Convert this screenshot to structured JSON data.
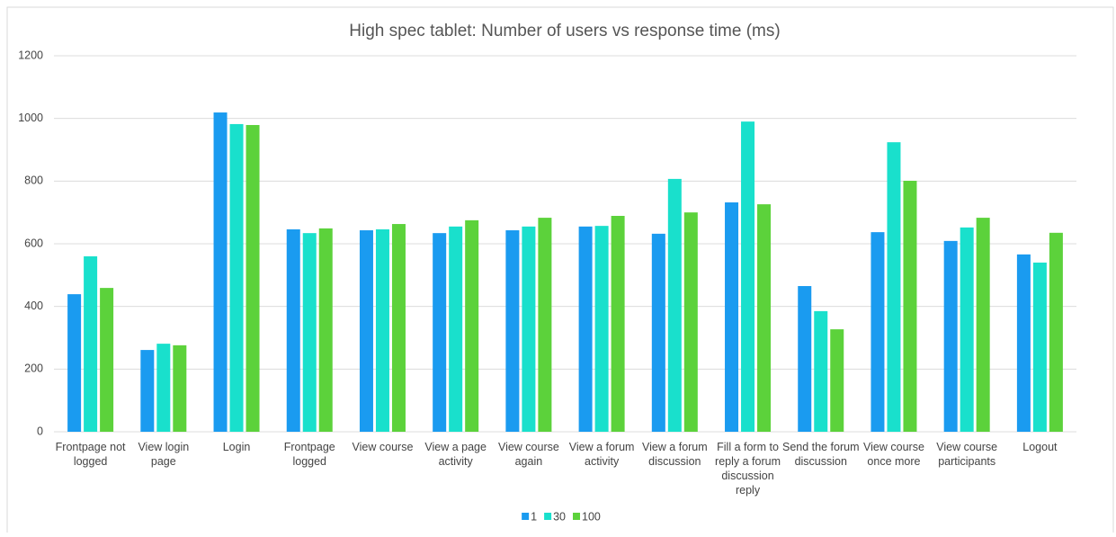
{
  "chart_data": {
    "type": "bar",
    "title": "High spec tablet: Number of users vs response time (ms)",
    "categories": [
      "Frontpage not logged",
      "View login page",
      "Login",
      "Frontpage logged",
      "View course",
      "View a page activity",
      "View course again",
      "View a forum activity",
      "View a forum discussion",
      "Fill a form to reply a forum discussion reply",
      "Send the forum discussion",
      "View course once more",
      "View course participants",
      "Logout"
    ],
    "series": [
      {
        "name": "1",
        "color": "#1a9bf0",
        "values": [
          439,
          261,
          1019,
          646,
          643,
          634,
          643,
          655,
          632,
          732,
          465,
          637,
          609,
          566
        ]
      },
      {
        "name": "30",
        "color": "#19e0cc",
        "values": [
          560,
          281,
          982,
          634,
          646,
          655,
          655,
          657,
          807,
          990,
          385,
          924,
          652,
          540
        ]
      },
      {
        "name": "100",
        "color": "#5cd23b",
        "values": [
          459,
          276,
          979,
          649,
          663,
          675,
          683,
          689,
          700,
          726,
          327,
          801,
          683,
          635
        ]
      }
    ],
    "ylim": [
      0,
      1200
    ],
    "yticks": [
      0,
      200,
      400,
      600,
      800,
      1000,
      1200
    ],
    "grid": true,
    "legend": "bottom"
  }
}
